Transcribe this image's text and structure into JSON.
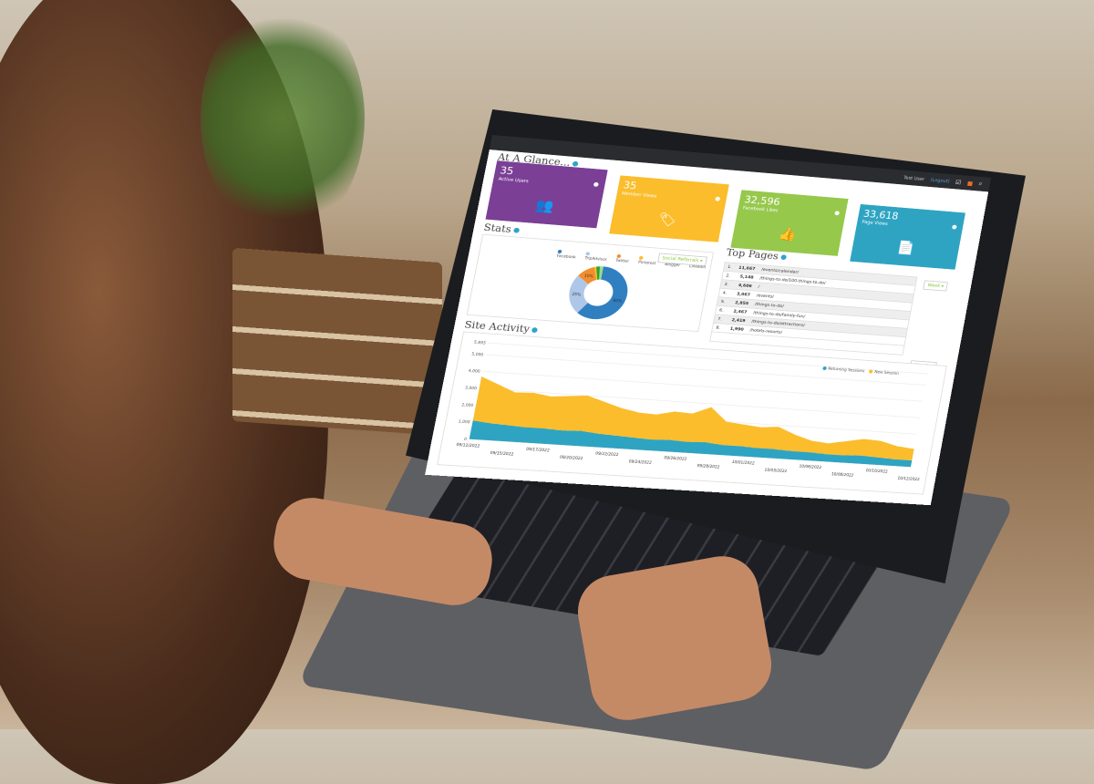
{
  "topbar": {
    "user": "Test User",
    "logout": "(Logout)",
    "icons": [
      "checklist-icon",
      "notification-icon",
      "search-icon"
    ]
  },
  "glance": {
    "title": "At A Glance...",
    "tiles": [
      {
        "value": "35",
        "label": "Active Users",
        "color": "#7b3f96",
        "icon": "users-icon",
        "glyph": "👥"
      },
      {
        "value": "35",
        "label": "Member Views",
        "color": "#fbbd2c",
        "icon": "tags-icon",
        "glyph": "🏷"
      },
      {
        "value": "32,596",
        "label": "Facebook Likes",
        "color": "#96c84c",
        "icon": "thumbs-up-icon",
        "glyph": "👍"
      },
      {
        "value": "33,618",
        "label": "Page Views",
        "color": "#2ea4c2",
        "icon": "document-icon",
        "glyph": "📄"
      }
    ]
  },
  "stats": {
    "title": "Stats",
    "dropdown": "Social Referrals ▾",
    "chart_data": {
      "type": "pie",
      "donut": true,
      "categories": [
        "Facebook",
        "TripAdvisor",
        "Twitter",
        "Pinterest",
        "Blogger",
        "LinkedIn"
      ],
      "values": [
        60,
        25,
        10,
        1,
        2,
        2
      ],
      "labels": [
        "60%",
        "25%",
        "10%",
        "",
        "",
        ""
      ],
      "colors": [
        "#2f7fc1",
        "#aec7e8",
        "#f28e2b",
        "#fbbd2c",
        "#2ca02c",
        "#98df8a"
      ],
      "legend": "top"
    }
  },
  "top_pages": {
    "title": "Top Pages",
    "dropdown": "Week ▾",
    "rows": [
      {
        "rank": "1.",
        "count": "11,667",
        "path": "/events/calendar/"
      },
      {
        "rank": "2.",
        "count": "5,148",
        "path": "/things-to-do/100-things-to-do/"
      },
      {
        "rank": "3.",
        "count": "4,606",
        "path": "/"
      },
      {
        "rank": "4.",
        "count": "3,067",
        "path": "/events/"
      },
      {
        "rank": "5.",
        "count": "2,855",
        "path": "/things-to-do/"
      },
      {
        "rank": "6.",
        "count": "2,467",
        "path": "/things-to-do/family-fun/"
      },
      {
        "rank": "7.",
        "count": "2,419",
        "path": "/things-to-do/attractions/"
      },
      {
        "rank": "8.",
        "count": "1,990",
        "path": "/hotels-resorts/"
      }
    ]
  },
  "activity": {
    "title": "Site Activity",
    "dropdown": "Month ▾",
    "chart_data": {
      "type": "area",
      "stacked": true,
      "x_ticks": [
        "09/12/2022",
        "09/15/2022",
        "09/17/2022",
        "09/20/2022",
        "09/22/2022",
        "09/24/2022",
        "09/26/2022",
        "09/28/2022",
        "10/01/2022",
        "10/03/2022",
        "10/06/2022",
        "10/08/2022",
        "10/10/2022",
        "10/12/2022"
      ],
      "y_ticks": [
        "0",
        "1,000",
        "2,000",
        "3,000",
        "4,000",
        "5,000",
        "5,693"
      ],
      "ylim": [
        0,
        5693
      ],
      "legend": "top-right",
      "grid": true,
      "series": [
        {
          "name": "Returning Sessions",
          "color": "#2ea4c2",
          "values": [
            1100,
            1000,
            950,
            900,
            900,
            850,
            900,
            800,
            750,
            700,
            650,
            700,
            650,
            700,
            600,
            600,
            550,
            550,
            500,
            500,
            450,
            450,
            500,
            450,
            400,
            400
          ]
        },
        {
          "name": "New Session",
          "color": "#fbbd2c",
          "values": [
            2600,
            2300,
            1950,
            2050,
            1900,
            2050,
            2100,
            1900,
            1650,
            1500,
            1500,
            1700,
            1700,
            2100,
            1400,
            1300,
            1250,
            1350,
            1000,
            700,
            650,
            850,
            1000,
            1000,
            800,
            700
          ]
        }
      ]
    }
  }
}
